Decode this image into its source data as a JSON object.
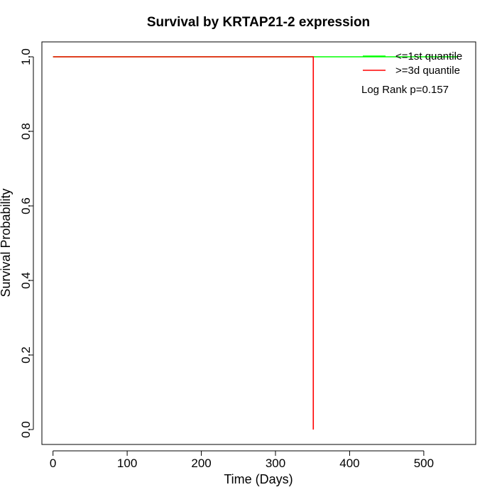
{
  "chart_data": {
    "type": "line",
    "title": "Survival by KRTAP21-2 expression",
    "xlabel": "Time (Days)",
    "ylabel": "Survival Probability",
    "xlim": [
      -15,
      570
    ],
    "ylim": [
      -0.04,
      1.04
    ],
    "x_ticks": [
      0,
      100,
      200,
      300,
      400,
      500
    ],
    "y_ticks": [
      0.0,
      0.2,
      0.4,
      0.6,
      0.8,
      1.0
    ],
    "x_tick_labels": [
      "0",
      "100",
      "200",
      "300",
      "400",
      "500"
    ],
    "y_tick_labels": [
      "0.0",
      "0.2",
      "0.4",
      "0.6",
      "0.8",
      "1.0"
    ],
    "grid": false,
    "legend_position": "top-right",
    "series": [
      {
        "name": "<=1st quantile",
        "color": "#00ff00",
        "x": [
          0,
          545
        ],
        "y": [
          1.0,
          1.0
        ]
      },
      {
        "name": ">=3d quantile",
        "color": "#ff0000",
        "x": [
          0,
          351,
          351
        ],
        "y": [
          1.0,
          1.0,
          0.0
        ]
      }
    ],
    "annotation": "Log Rank p=0.157"
  }
}
